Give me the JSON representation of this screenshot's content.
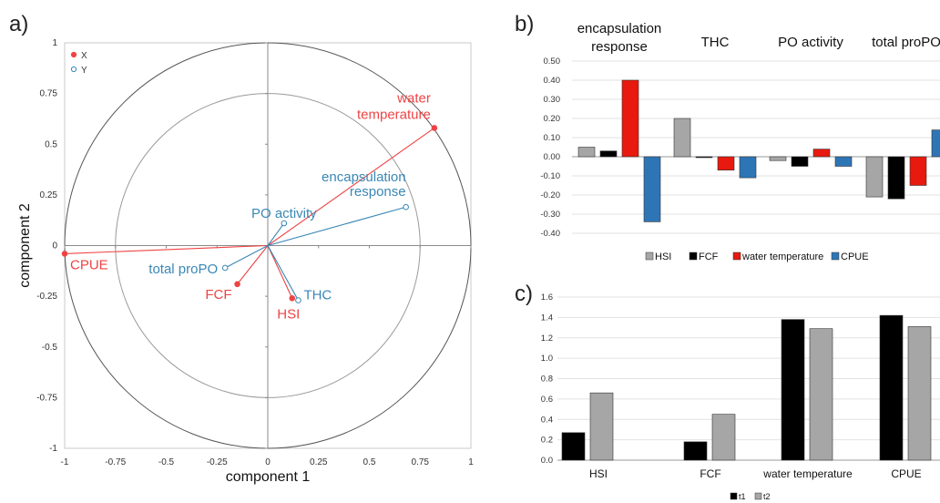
{
  "chart_data": [
    {
      "panel": "a)",
      "type": "scatter",
      "xlabel": "component 1",
      "ylabel": "component 2",
      "xlim": [
        -1,
        1
      ],
      "ylim": [
        -1,
        1
      ],
      "xticks": [
        "-1",
        "-0.75",
        "-0.5",
        "-0.25",
        "0",
        "0.25",
        "0.5",
        "0.75",
        "1"
      ],
      "yticks": [
        "-1",
        "-0.75",
        "-0.5",
        "-0.25",
        "0",
        "0.25",
        "0.5",
        "0.75",
        "1"
      ],
      "circles": [
        1,
        0.75
      ],
      "legend": {
        "position": "top-left",
        "entries": [
          {
            "name": "X",
            "color": "#ee4444"
          },
          {
            "name": "Y",
            "color": "#3a87b5"
          }
        ]
      },
      "series": [
        {
          "name": "X",
          "color": "#ee4444",
          "points": [
            {
              "label": [
                "water",
                "temperature"
              ],
              "x": 0.82,
              "y": 0.58
            },
            {
              "label": [
                "CPUE"
              ],
              "x": -1.0,
              "y": -0.04
            },
            {
              "label": [
                "FCF"
              ],
              "x": -0.15,
              "y": -0.19
            },
            {
              "label": [
                "HSI"
              ],
              "x": 0.12,
              "y": -0.26
            }
          ]
        },
        {
          "name": "Y",
          "color": "#3a87b5",
          "points": [
            {
              "label": [
                "encapsulation",
                "response"
              ],
              "x": 0.68,
              "y": 0.19
            },
            {
              "label": [
                "PO activity"
              ],
              "x": 0.08,
              "y": 0.11
            },
            {
              "label": [
                "total proPO"
              ],
              "x": -0.21,
              "y": -0.11
            },
            {
              "label": [
                "THC"
              ],
              "x": 0.15,
              "y": -0.27
            }
          ]
        }
      ]
    },
    {
      "panel": "b)",
      "type": "bar",
      "categories": [
        [
          "encapsulation",
          "response"
        ],
        [
          "THC"
        ],
        [
          "PO activity"
        ],
        [
          "total proPO"
        ]
      ],
      "ylim": [
        -0.4,
        0.5
      ],
      "yticks": [
        "-0.40",
        "-0.30",
        "-0.20",
        "-0.10",
        "0.00",
        "0.10",
        "0.20",
        "0.30",
        "0.40",
        "0.50"
      ],
      "legend": {
        "position": "bottom"
      },
      "series": [
        {
          "name": "HSI",
          "color": "#a6a6a6",
          "values": [
            0.05,
            0.2,
            -0.02,
            -0.21
          ]
        },
        {
          "name": "FCF",
          "color": "#000000",
          "values": [
            0.03,
            0.0,
            -0.05,
            -0.22
          ]
        },
        {
          "name": "water temperature",
          "color": "#e8190e",
          "values": [
            0.4,
            -0.07,
            0.04,
            -0.15
          ]
        },
        {
          "name": "CPUE",
          "color": "#2e75b6",
          "values": [
            -0.34,
            -0.11,
            -0.05,
            0.14
          ]
        }
      ]
    },
    {
      "panel": "c)",
      "type": "bar",
      "categories": [
        "HSI",
        "FCF",
        "water temperature",
        "CPUE"
      ],
      "ylim": [
        0,
        1.6
      ],
      "yticks": [
        "0.0",
        "0.2",
        "0.4",
        "0.6",
        "0.8",
        "1.0",
        "1.2",
        "1.4",
        "1.6"
      ],
      "legend": {
        "position": "bottom"
      },
      "series": [
        {
          "name": "t1",
          "color": "#000000",
          "values": [
            0.27,
            0.18,
            1.38,
            1.42
          ]
        },
        {
          "name": "t2",
          "color": "#a6a6a6",
          "values": [
            0.66,
            0.45,
            1.29,
            1.31
          ]
        }
      ]
    }
  ]
}
